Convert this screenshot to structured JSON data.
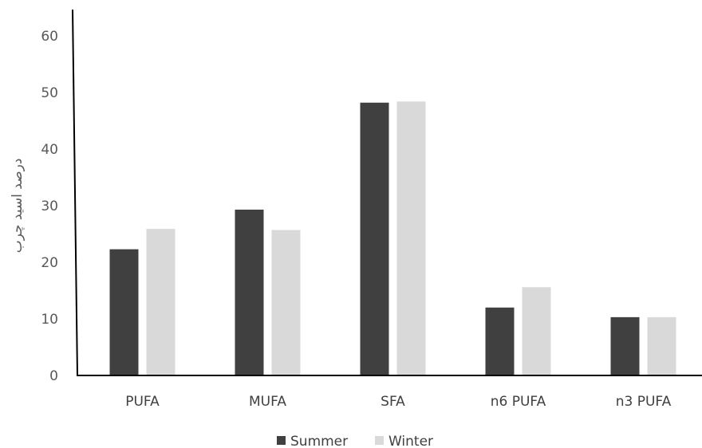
{
  "chart_data": {
    "type": "bar",
    "title": "",
    "xlabel": "",
    "ylabel": "درصد اسید چرب",
    "categories": [
      "PUFA",
      "MUFA",
      "SFA",
      "n6 PUFA",
      "n3 PUFA"
    ],
    "series": [
      {
        "name": "Summer",
        "color": "#404040",
        "values": [
          22.3,
          29.3,
          48.2,
          12.0,
          10.3
        ]
      },
      {
        "name": "Winter",
        "color": "#d9d9d9",
        "values": [
          25.9,
          25.7,
          48.4,
          15.6,
          10.3
        ]
      }
    ],
    "ylim": [
      0,
      60
    ],
    "yticks": [
      "0",
      "10",
      "20",
      "30",
      "40",
      "50",
      "60"
    ],
    "grid": false,
    "legend_position": "bottom"
  }
}
